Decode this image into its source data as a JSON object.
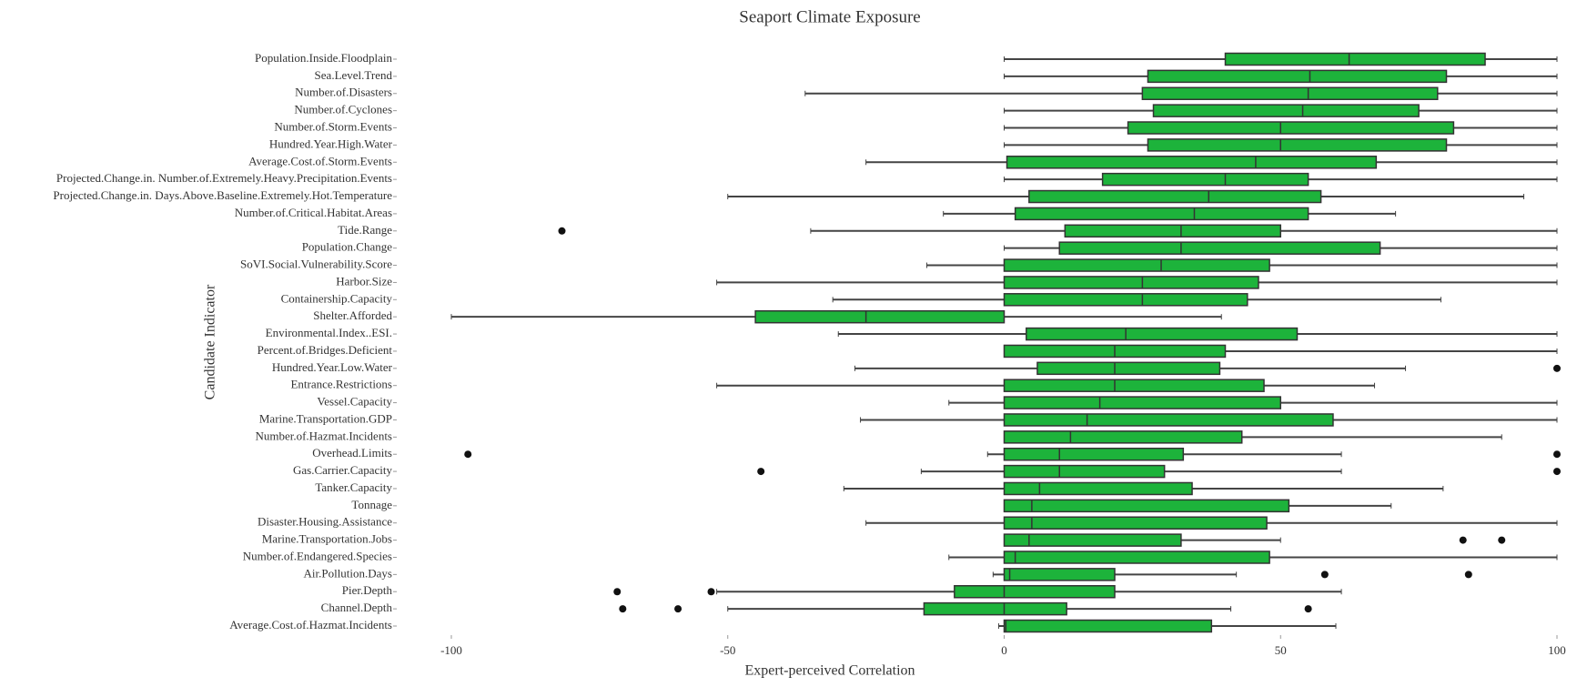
{
  "chart_data": {
    "type": "boxplot",
    "title": "Seaport Climate Exposure",
    "x_label": "Expert-perceived Correlation",
    "y_label": "Candidate Indicator",
    "color": "#1db33b",
    "categories": [
      "Population.Inside.Floodplain",
      "Sea.Level.Trend",
      "Number.of.Disasters",
      "Number.of.Cyclones",
      "Number.of.Storm.Events",
      "Hundred.Year.High.Water",
      "Average.Cost.of.Storm.Events",
      "Projected.Change.in. Number.of.Extremely.Heavy.Precipitation.Events",
      "Projected.Change.in. Days.Above.Baseline.Extremely.Hot.Temperature",
      "Number.of.Critical.Habitat.Areas",
      "Tide.Range",
      "Population.Change",
      "SoVI.Social.Vulnerability.Score",
      "Harbor.Size",
      "Containership.Capacity",
      "Shelter.Afforded",
      "Environmental.Index..ESI.",
      "Percent.of.Bridges.Deficient",
      "Hundred.Year.Low.Water",
      "Entrance.Restrictions",
      "Vessel.Capacity",
      "Marine.Transportation.GDP",
      "Number.of.Hazmat.Incidents",
      "Overhead.Limits",
      "Gas.Carrier.Capacity",
      "Tanker.Capacity",
      "Tonnage",
      "Disaster.Housing.Assistance",
      "Marine.Transportation.Jobs",
      "Number.of.Endangered.Species",
      "Air.Pollution.Days",
      "Pier.Depth",
      "Channel.Depth",
      "Average.Cost.of.Hazmat.Incidents"
    ],
    "min": [
      0,
      0,
      -36,
      0,
      0,
      0,
      -25,
      0,
      -50,
      -11,
      -35,
      0,
      -14,
      -52,
      -31,
      -100,
      -30,
      0,
      -27,
      -52,
      -10,
      -26,
      0,
      -3,
      -15,
      -29,
      0,
      -25,
      0,
      -10,
      -2,
      -52,
      -50,
      -1
    ],
    "q1": [
      40,
      26,
      25,
      27,
      22.4,
      26,
      0.5,
      17.8,
      4.5,
      2,
      11,
      10,
      0,
      0,
      0,
      -45,
      4,
      0,
      6,
      0,
      0,
      0,
      0,
      0,
      0,
      0,
      0,
      0,
      0,
      0,
      0,
      -9,
      -14.5,
      0
    ],
    "median": [
      62.4,
      55.3,
      55,
      54,
      50,
      50,
      45.5,
      40,
      37,
      34.4,
      32,
      32,
      28.4,
      25,
      25,
      -25,
      22,
      20,
      20,
      20,
      17.3,
      15,
      12,
      10,
      10,
      6.4,
      5,
      5,
      4.5,
      2,
      1,
      0,
      0,
      0.3
    ],
    "q3": [
      87,
      80,
      78.4,
      75,
      81.3,
      80,
      67.3,
      55,
      57.3,
      55,
      50,
      68,
      48,
      46,
      44,
      0,
      53,
      40,
      39,
      47,
      50,
      59.5,
      43,
      32.4,
      29,
      34,
      51.5,
      47.5,
      32,
      48,
      20,
      20,
      11.3,
      37.5
    ],
    "max": [
      100,
      100,
      100,
      100,
      100,
      100,
      100,
      100,
      94,
      70.8,
      100,
      100,
      100,
      100,
      79,
      39.3,
      100,
      100,
      72.6,
      67,
      100,
      100,
      90,
      61,
      61,
      79.4,
      70,
      100,
      50,
      100,
      42,
      61,
      41,
      60
    ],
    "outliers": [
      [],
      [],
      [],
      [],
      [],
      [],
      [],
      [],
      [],
      [],
      [
        -80
      ],
      [],
      [],
      [],
      [],
      [],
      [],
      [],
      [
        100
      ],
      [],
      [],
      [],
      [],
      [
        -97,
        100
      ],
      [
        -44,
        100
      ],
      [],
      [],
      [],
      [
        83,
        90
      ],
      [],
      [
        58,
        84
      ],
      [
        -70,
        -53
      ],
      [
        -69,
        -59,
        55
      ],
      []
    ],
    "xlim": [
      -100,
      100
    ],
    "xticks": [
      -100,
      -50,
      0,
      50,
      100
    ]
  }
}
